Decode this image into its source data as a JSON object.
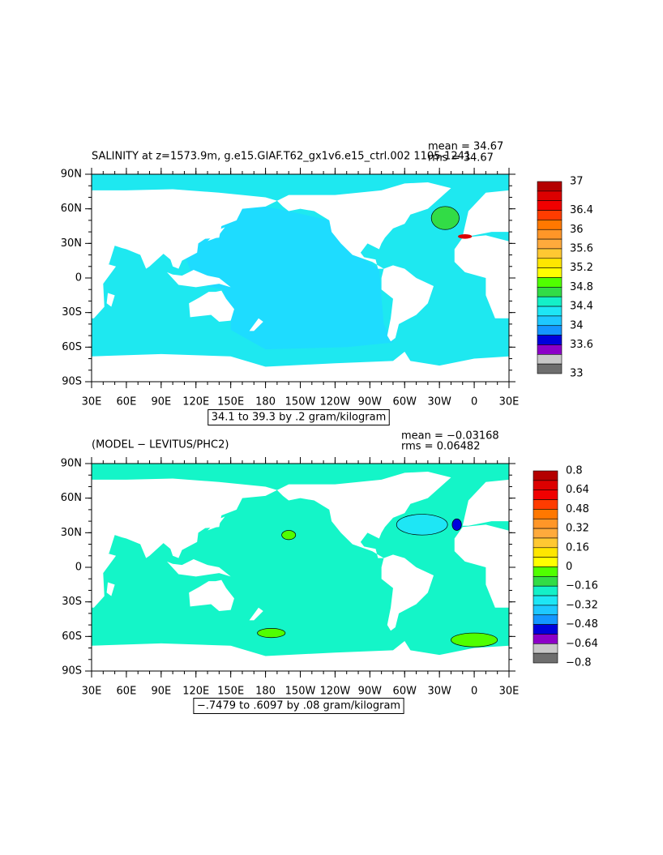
{
  "panels": [
    {
      "title": "SALINITY at z=1573.9m, g.e15.GIAF.T62_gx1v6.e15_ctrl.002 1105-1241",
      "mean": "mean = 34.67",
      "rms": "rms = 34.67",
      "xticks": [
        "30E",
        "60E",
        "90E",
        "120E",
        "150E",
        "180",
        "150W",
        "120W",
        "90W",
        "60W",
        "30W",
        "0",
        "30E"
      ],
      "yticks": [
        "90N",
        "60N",
        "30N",
        "0",
        "30S",
        "60S",
        "90S"
      ],
      "ocean_color": "#1ee8f0",
      "pacific_color": "#1edcff",
      "colorbar_colors": [
        "#b40000",
        "#dc0000",
        "#f00000",
        "#ff3c00",
        "#ff7800",
        "#ff9628",
        "#ffaa3c",
        "#ffc832",
        "#ffe600",
        "#ffff00",
        "#50ff00",
        "#32dc46",
        "#14f0c8",
        "#1ee6f5",
        "#1ec8ff",
        "#1496ff",
        "#0000dc",
        "#8c00c8",
        "#c8c8c8",
        "#6e6e6e"
      ],
      "colorbar_labels": [
        "37",
        "36.4",
        "36",
        "35.6",
        "35.2",
        "34.8",
        "34.4",
        "34",
        "33.6",
        "33"
      ],
      "contour_info": "34.1 to 39.3 by .2 gram/kilogram"
    },
    {
      "title": "(MODEL − LEVITUS/PHC2)",
      "mean": "mean = −0.03168",
      "rms": "rms = 0.06482",
      "xticks": [
        "30E",
        "60E",
        "90E",
        "120E",
        "150E",
        "180",
        "150W",
        "120W",
        "90W",
        "60W",
        "30W",
        "0",
        "30E"
      ],
      "yticks": [
        "90N",
        "60N",
        "30N",
        "0",
        "30S",
        "60S",
        "90S"
      ],
      "ocean_color": "#14f5c8",
      "pacific_color": "#14f5c8",
      "colorbar_colors": [
        "#b40000",
        "#dc0000",
        "#f00000",
        "#ff3c00",
        "#ff7800",
        "#ff9628",
        "#ffaa3c",
        "#ffc832",
        "#ffe600",
        "#ffff00",
        "#50ff00",
        "#32dc46",
        "#14f0c8",
        "#1ee6f5",
        "#1ec8ff",
        "#1496ff",
        "#0000dc",
        "#8c00c8",
        "#c8c8c8",
        "#6e6e6e"
      ],
      "colorbar_labels": [
        "0.8",
        "0.64",
        "0.48",
        "0.32",
        "0.16",
        "0",
        "−0.16",
        "−0.32",
        "−0.48",
        "−0.64",
        "−0.8"
      ],
      "contour_info": "−.7479 to .6097 by .08 gram/kilogram"
    }
  ]
}
